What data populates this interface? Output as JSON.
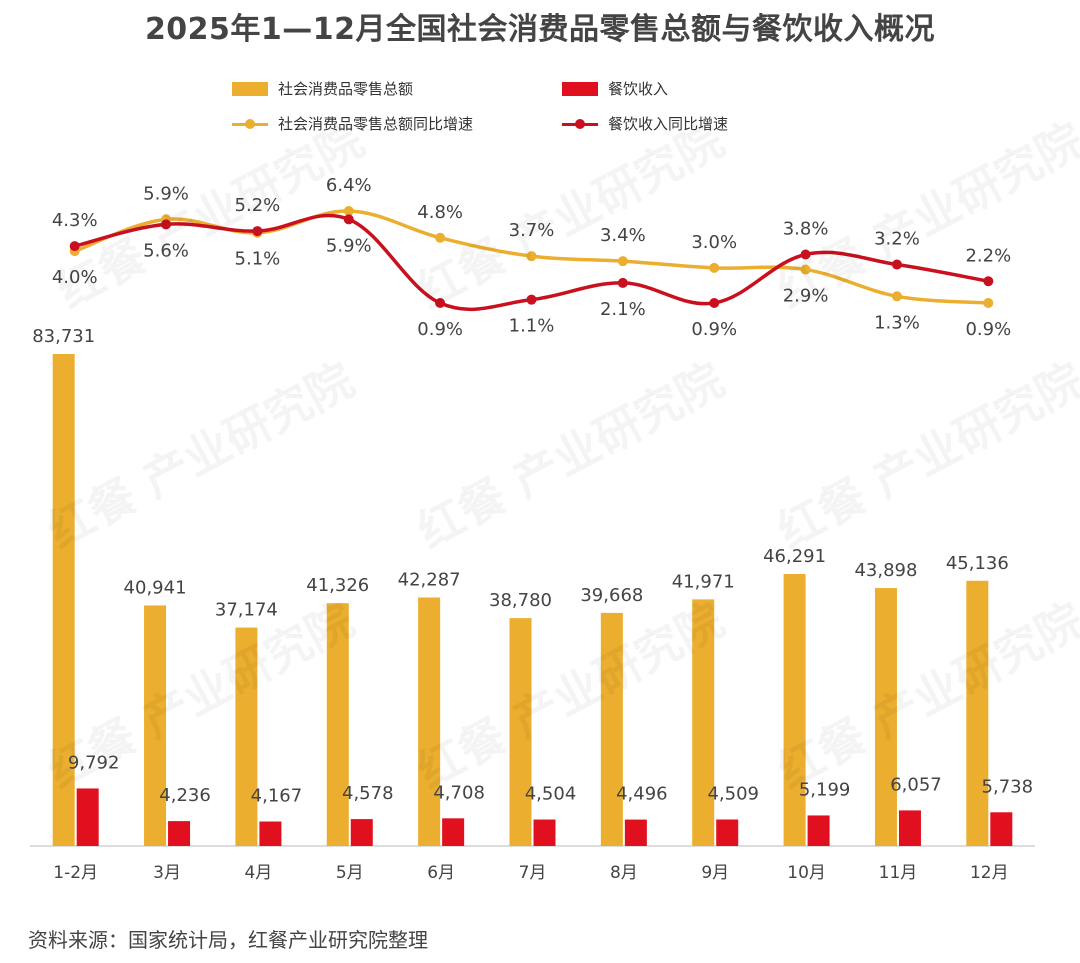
{
  "title": "2025年1—12月全国社会消费品零售总额与餐饮收入概况",
  "source": "资料来源：国家统计局，红餐产业研究院整理",
  "watermark": "红餐 产业研究院",
  "colors": {
    "retail": "#EBAE2E",
    "catering": "#E0101E",
    "retail_line": "#EBAE2E",
    "catering_line": "#C8101E",
    "label": "#444444",
    "axis": "#BBBBBB"
  },
  "legend": [
    {
      "label": "社会消费品零售总额",
      "kind": "bar",
      "color": "#EBAE2E"
    },
    {
      "label": "餐饮收入",
      "kind": "bar",
      "color": "#E0101E"
    },
    {
      "label": "社会消费品零售总额同比增速",
      "kind": "line",
      "color": "#EBAE2E"
    },
    {
      "label": "餐饮收入同比增速",
      "kind": "line",
      "color": "#C8101E"
    }
  ],
  "chart_data": {
    "type": "bar",
    "categories": [
      "1-2月",
      "3月",
      "4月",
      "5月",
      "6月",
      "7月",
      "8月",
      "9月",
      "10月",
      "11月",
      "12月"
    ],
    "series": [
      {
        "name": "社会消费品零售总额",
        "type": "bar",
        "values": [
          83731,
          40941,
          37174,
          41326,
          42287,
          38780,
          39668,
          41971,
          46291,
          43898,
          45136
        ],
        "labels": [
          "83,731",
          "40,941",
          "37,174",
          "41,326",
          "42,287",
          "38,780",
          "39,668",
          "41,971",
          "46,291",
          "43,898",
          "45,136"
        ]
      },
      {
        "name": "餐饮收入",
        "type": "bar",
        "values": [
          9792,
          4236,
          4167,
          4578,
          4708,
          4504,
          4496,
          4509,
          5199,
          6057,
          5738
        ],
        "labels": [
          "9,792",
          "4,236",
          "4,167",
          "4,578",
          "4,708",
          "4,504",
          "4,496",
          "4,509",
          "5,199",
          "6,057",
          "5,738"
        ]
      },
      {
        "name": "社会消费品零售总额同比增速",
        "type": "line",
        "values": [
          4.0,
          5.9,
          5.1,
          6.4,
          4.8,
          3.7,
          3.4,
          3.0,
          2.9,
          1.3,
          0.9
        ],
        "labels": [
          "4.0%",
          "5.9%",
          "5.1%",
          "6.4%",
          "4.8%",
          "3.7%",
          "3.4%",
          "3.0%",
          "2.9%",
          "1.3%",
          "0.9%"
        ],
        "label_side": [
          "below",
          "above",
          "below",
          "above",
          "above",
          "above",
          "above",
          "above",
          "below",
          "below",
          "below"
        ]
      },
      {
        "name": "餐饮收入同比增速",
        "type": "line",
        "values": [
          4.3,
          5.6,
          5.2,
          5.9,
          0.9,
          1.1,
          2.1,
          0.9,
          3.8,
          3.2,
          2.2
        ],
        "labels": [
          "4.3%",
          "5.6%",
          "5.2%",
          "5.9%",
          "0.9%",
          "1.1%",
          "2.1%",
          "0.9%",
          "3.8%",
          "3.2%",
          "2.2%"
        ],
        "label_side": [
          "above",
          "below",
          "above",
          "below",
          "below",
          "below",
          "below",
          "below",
          "above",
          "above",
          "above"
        ]
      }
    ],
    "bar_ylim": [
      0,
      90000
    ],
    "line_ylim": [
      0,
      7
    ]
  }
}
